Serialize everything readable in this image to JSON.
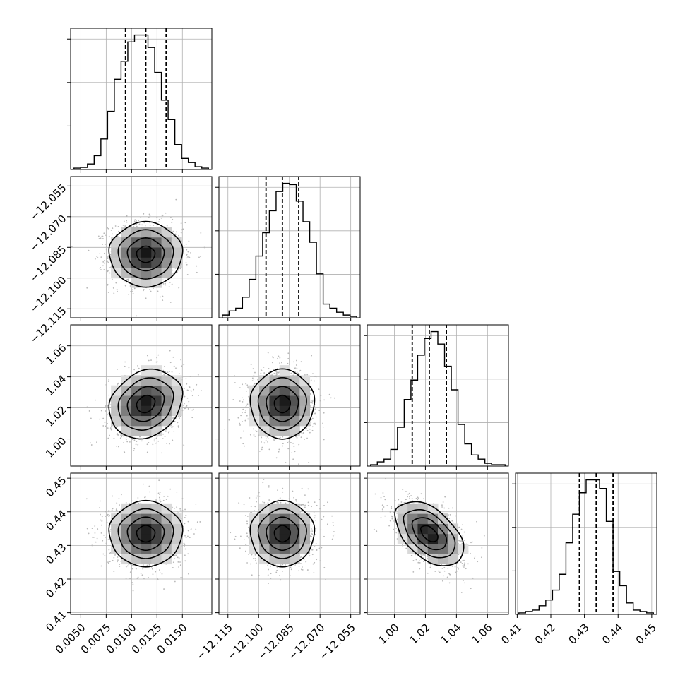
{
  "chart_data": {
    "type": "corner",
    "grid": true,
    "parameters": [
      {
        "xlim": [
          0.004,
          0.0179
        ],
        "ticks": [
          0.005,
          0.0075,
          0.01,
          0.0125,
          0.015
        ],
        "tick_labels": [
          "0.0050",
          "0.0075",
          "0.0100",
          "0.0125",
          "0.0150"
        ],
        "quantiles": [
          0.0094,
          0.0114,
          0.0134
        ],
        "hist_values": [
          0.01,
          0.015,
          0.04,
          0.1,
          0.22,
          0.42,
          0.65,
          0.78,
          0.92,
          0.97,
          0.97,
          0.88,
          0.7,
          0.5,
          0.36,
          0.18,
          0.08,
          0.05,
          0.02,
          0.01
        ]
      },
      {
        "xlim": [
          -12.1194,
          -12.0504
        ],
        "ticks": [
          -12.115,
          -12.1,
          -12.085,
          -12.07,
          -12.055
        ],
        "tick_labels": [
          "−12.115",
          "−12.100",
          "−12.085",
          "−12.070",
          "−12.055"
        ],
        "quantiles": [
          -12.0964,
          -12.0884,
          -12.0804
        ],
        "hist_values": [
          0.02,
          0.05,
          0.07,
          0.15,
          0.28,
          0.45,
          0.62,
          0.78,
          0.92,
          0.98,
          0.97,
          0.85,
          0.7,
          0.55,
          0.32,
          0.1,
          0.07,
          0.04,
          0.02,
          0.01
        ]
      },
      {
        "xlim": [
          0.9825,
          1.0735
        ],
        "ticks": [
          1.0,
          1.02,
          1.04,
          1.06
        ],
        "tick_labels": [
          "1.00",
          "1.02",
          "1.04",
          "1.06"
        ],
        "quantiles": [
          1.0115,
          1.0225,
          1.0335
        ],
        "hist_values": [
          0.01,
          0.03,
          0.05,
          0.12,
          0.28,
          0.48,
          0.62,
          0.8,
          0.92,
          0.97,
          0.88,
          0.72,
          0.55,
          0.3,
          0.16,
          0.08,
          0.05,
          0.02,
          0.01,
          0.01
        ]
      },
      {
        "xlim": [
          0.4095,
          0.4515
        ],
        "ticks": [
          0.41,
          0.42,
          0.43,
          0.44,
          0.45
        ],
        "tick_labels": [
          "0.41",
          "0.42",
          "0.43",
          "0.44",
          "0.45"
        ],
        "quantiles": [
          0.4285,
          0.4335,
          0.4385
        ],
        "hist_values": [
          0.01,
          0.02,
          0.03,
          0.06,
          0.1,
          0.17,
          0.28,
          0.5,
          0.7,
          0.85,
          0.94,
          0.94,
          0.88,
          0.65,
          0.3,
          0.2,
          0.08,
          0.03,
          0.02,
          0.01
        ]
      }
    ],
    "row_ticks": [
      null,
      {
        "ticks": [
          -12.055,
          -12.07,
          -12.085,
          -12.1,
          -12.115
        ],
        "tick_labels": [
          "−12.055",
          "−12.070",
          "−12.085",
          "−12.100",
          "−12.115"
        ]
      },
      {
        "ticks": [
          1.06,
          1.04,
          1.02,
          1.0
        ],
        "tick_labels": [
          "1.06",
          "1.04",
          "1.02",
          "1.00"
        ]
      },
      {
        "ticks": [
          0.45,
          0.44,
          0.43,
          0.42,
          0.41
        ],
        "tick_labels": [
          "0.45",
          "0.44",
          "0.43",
          "0.42",
          "0.41"
        ]
      }
    ],
    "pair_estimates": [
      {
        "x_param": 0,
        "y_param": 1,
        "mean": [
          0.0114,
          -12.0884
        ],
        "std": [
          0.0018,
          0.0078
        ],
        "corr": 0.0
      },
      {
        "x_param": 0,
        "y_param": 2,
        "mean": [
          0.0114,
          1.0225
        ],
        "std": [
          0.0018,
          0.011
        ],
        "corr": 0.2
      },
      {
        "x_param": 1,
        "y_param": 2,
        "mean": [
          -12.0884,
          1.0225
        ],
        "std": [
          0.0078,
          0.011
        ],
        "corr": 0.0
      },
      {
        "x_param": 0,
        "y_param": 3,
        "mean": [
          0.0114,
          0.4335
        ],
        "std": [
          0.0018,
          0.0048
        ],
        "corr": 0.0
      },
      {
        "x_param": 1,
        "y_param": 3,
        "mean": [
          -12.0884,
          0.4335
        ],
        "std": [
          0.0078,
          0.0048
        ],
        "corr": 0.0
      },
      {
        "x_param": 2,
        "y_param": 3,
        "mean": [
          1.0225,
          0.4335
        ],
        "std": [
          0.011,
          0.0048
        ],
        "corr": -0.5
      }
    ],
    "contour_levels_sigma": [
      0.5,
      1.0,
      1.5,
      2.0
    ],
    "colors": {
      "hist": "#000000",
      "grid": "#b0b0b0",
      "scatter": "#b8b8b8",
      "density_dark": "#000000"
    }
  }
}
